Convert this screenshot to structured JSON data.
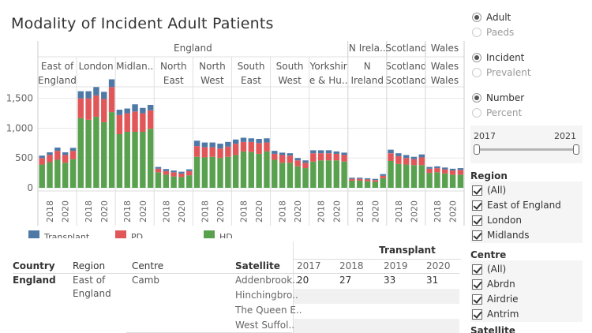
{
  "title": "Modality of Incident Adult Patients",
  "chart_data": {
    "type": "bar",
    "stacked": true,
    "years": [
      "2017",
      "2018",
      "2019",
      "2020",
      "2021"
    ],
    "tick_years": [
      "2018",
      "2020"
    ],
    "y_ticks": [
      "0",
      "500",
      "1,000",
      "1,500"
    ],
    "ylim": [
      0,
      1800
    ],
    "grid": true,
    "legend_position": "bottom",
    "colors": {
      "Transplant": "#4e79a7",
      "PD": "#e15759",
      "HD": "#59a14f"
    },
    "country_headers": [
      {
        "label": "England",
        "start": 0,
        "end": 8
      },
      {
        "label": "N Irela..",
        "start": 8,
        "end": 9
      },
      {
        "label": "Scotland",
        "start": 9,
        "end": 10
      },
      {
        "label": "Wales",
        "start": 10,
        "end": 11
      }
    ],
    "groups": [
      {
        "label1": "East of",
        "label2": "England",
        "hd": [
          390,
          430,
          470,
          420,
          480
        ],
        "pd": [
          110,
          120,
          150,
          130,
          140
        ],
        "tx": [
          40,
          45,
          55,
          45,
          50
        ]
      },
      {
        "label1": "London",
        "label2": "",
        "hd": [
          1170,
          1140,
          1190,
          1100,
          1270
        ],
        "pd": [
          330,
          360,
          360,
          390,
          420
        ],
        "tx": [
          120,
          120,
          140,
          120,
          130
        ]
      },
      {
        "label1": "Midlan..",
        "label2": "",
        "hd": [
          900,
          940,
          940,
          940,
          990
        ],
        "pd": [
          320,
          310,
          340,
          310,
          310
        ],
        "tx": [
          90,
          80,
          120,
          90,
          90
        ]
      },
      {
        "label1": "North",
        "label2": "East",
        "hd": [
          260,
          220,
          190,
          180,
          210
        ],
        "pd": [
          60,
          60,
          70,
          60,
          70
        ],
        "tx": [
          30,
          35,
          30,
          30,
          30
        ]
      },
      {
        "label1": "North",
        "label2": "West",
        "hd": [
          520,
          510,
          520,
          500,
          520
        ],
        "pd": [
          180,
          170,
          160,
          160,
          170
        ],
        "tx": [
          90,
          80,
          80,
          80,
          80
        ]
      },
      {
        "label1": "South",
        "label2": "East",
        "hd": [
          550,
          610,
          600,
          570,
          610
        ],
        "pd": [
          190,
          160,
          170,
          180,
          150
        ],
        "tx": [
          70,
          70,
          60,
          70,
          70
        ]
      },
      {
        "label1": "South",
        "label2": "West",
        "hd": [
          470,
          420,
          420,
          360,
          330
        ],
        "pd": [
          100,
          130,
          120,
          100,
          90
        ],
        "tx": [
          50,
          40,
          40,
          40,
          40
        ]
      },
      {
        "label1": "Yorkshir",
        "label2": "e & Hu..",
        "hd": [
          440,
          460,
          460,
          460,
          440
        ],
        "pd": [
          140,
          120,
          120,
          110,
          110
        ],
        "tx": [
          50,
          50,
          50,
          40,
          40
        ]
      },
      {
        "label1": "N",
        "label2": "Ireland",
        "hd": [
          120,
          120,
          110,
          100,
          160
        ],
        "pd": [
          30,
          30,
          30,
          30,
          40
        ],
        "tx": [
          20,
          20,
          20,
          20,
          30
        ]
      },
      {
        "label1": "Scotland",
        "label2": "Scotland",
        "hd": [
          450,
          400,
          390,
          380,
          380
        ],
        "pd": [
          130,
          130,
          110,
          100,
          130
        ],
        "tx": [
          60,
          50,
          50,
          40,
          50
        ]
      },
      {
        "label1": "Wales",
        "label2": "Wales",
        "hd": [
          250,
          260,
          240,
          220,
          220
        ],
        "pd": [
          70,
          70,
          70,
          70,
          80
        ],
        "tx": [
          30,
          30,
          30,
          30,
          30
        ]
      }
    ],
    "legend": [
      {
        "name": "Transplant",
        "color": "#4e79a7"
      },
      {
        "name": "PD",
        "color": "#e15759"
      },
      {
        "name": "HD",
        "color": "#59a14f"
      }
    ]
  },
  "table": {
    "headers": {
      "country": "Country",
      "region": "Region",
      "centre": "Centre",
      "satellite": "Satellite",
      "group": "Transplant"
    },
    "years": [
      "2017",
      "2018",
      "2019",
      "2020"
    ],
    "country": "England",
    "region_line1": "East of",
    "region_line2": "England",
    "centre": "Camb",
    "satellites": [
      "Addenbrook..",
      "Hinchingbro..",
      "The Queen E..",
      "West Suffol.."
    ],
    "row_values": [
      "20",
      "27",
      "33",
      "31"
    ]
  },
  "filters": {
    "age": {
      "options": [
        "Adult",
        "Paeds"
      ],
      "selected": "Adult"
    },
    "timing": {
      "options": [
        "Incident",
        "Prevalent"
      ],
      "selected": "Incident"
    },
    "measure": {
      "options": [
        "Number",
        "Percent"
      ],
      "selected": "Number"
    },
    "year_range": {
      "min_label": "2017",
      "max_label": "2021",
      "from": 2017,
      "to": 2021
    },
    "region": {
      "title": "Region",
      "items": [
        "(All)",
        "East of England",
        "London",
        "Midlands"
      ]
    },
    "centre": {
      "title": "Centre",
      "items": [
        "(All)",
        "Abrdn",
        "Airdrie",
        "Antrim"
      ]
    },
    "satellite": {
      "title": "Satellite"
    }
  }
}
